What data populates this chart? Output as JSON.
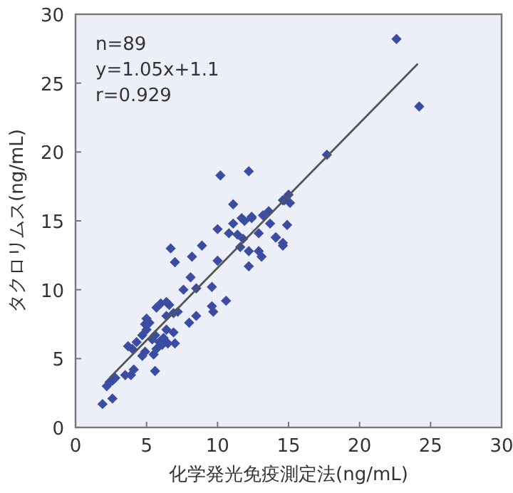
{
  "chart_data": {
    "type": "scatter",
    "xlabel": "化学発光免疫測定法(ng/mL)",
    "ylabel": "タクロリムス(ng/mL)",
    "xlim": [
      0,
      30
    ],
    "ylim": [
      0,
      30
    ],
    "xticks": [
      0,
      5,
      10,
      15,
      20,
      25,
      30
    ],
    "yticks": [
      0,
      5,
      10,
      15,
      20,
      25,
      30
    ],
    "grid": false,
    "annotations": [
      "n=89",
      "y=1.05x+1.1",
      "r=0.929"
    ],
    "series": [
      {
        "marker": "diamond",
        "color": "#3b4da3",
        "x": [
          1.9,
          2.6,
          2.2,
          2.4,
          2.6,
          2.8,
          3.5,
          3.9,
          4.1,
          3.7,
          4.0,
          4.3,
          4.7,
          4.9,
          5.6,
          5.5,
          5.7,
          4.7,
          5.0,
          4.9,
          5.0,
          5.2,
          5.4,
          5.6,
          5.9,
          6.1,
          6.2,
          6.5,
          7.0,
          6.9,
          6.4,
          5.7,
          6.0,
          6.4,
          6.6,
          6.4,
          6.9,
          7.2,
          6.7,
          7.0,
          7.6,
          8.0,
          8.1,
          8.2,
          8.5,
          8.5,
          8.9,
          9.6,
          9.6,
          9.7,
          10.0,
          10.0,
          10.6,
          10.8,
          11.1,
          11.4,
          11.6,
          11.8,
          11.9,
          12.2,
          12.2,
          12.9,
          13.1,
          13.2,
          12.9,
          12.4,
          14.1,
          14.6,
          10.2,
          12.2,
          11.1,
          11.7,
          12.4,
          13.7,
          13.6,
          14.6,
          22.6,
          24.2,
          17.7,
          15.0,
          14.7,
          15.1,
          14.9,
          14.1,
          14.6
        ],
        "values": [
          1.7,
          2.1,
          3.0,
          3.3,
          3.4,
          3.6,
          3.8,
          3.8,
          4.2,
          5.9,
          5.7,
          6.2,
          5.2,
          5.5,
          4.1,
          5.3,
          5.7,
          6.7,
          7.1,
          7.5,
          7.9,
          7.6,
          6.4,
          6.7,
          6.2,
          6.0,
          6.5,
          6.1,
          6.1,
          6.9,
          7.1,
          8.7,
          9.0,
          9.1,
          8.9,
          8.1,
          8.3,
          8.4,
          13.0,
          12.0,
          10.0,
          7.6,
          10.9,
          12.4,
          8.1,
          10.1,
          13.2,
          10.2,
          8.8,
          8.4,
          12.1,
          14.4,
          9.2,
          14.1,
          14.8,
          14.0,
          13.1,
          13.7,
          15.0,
          11.7,
          12.8,
          12.8,
          12.4,
          15.4,
          14.1,
          15.2,
          13.8,
          13.4,
          18.3,
          18.6,
          16.2,
          15.2,
          15.3,
          14.8,
          15.7,
          16.5,
          28.2,
          23.3,
          19.8,
          16.9,
          16.5,
          16.3,
          14.7,
          13.8,
          13.2
        ]
      },
      {
        "type": "line",
        "color": "#555555",
        "x": [
          2.4,
          24.1
        ],
        "values": [
          3.6,
          26.4
        ]
      }
    ]
  }
}
